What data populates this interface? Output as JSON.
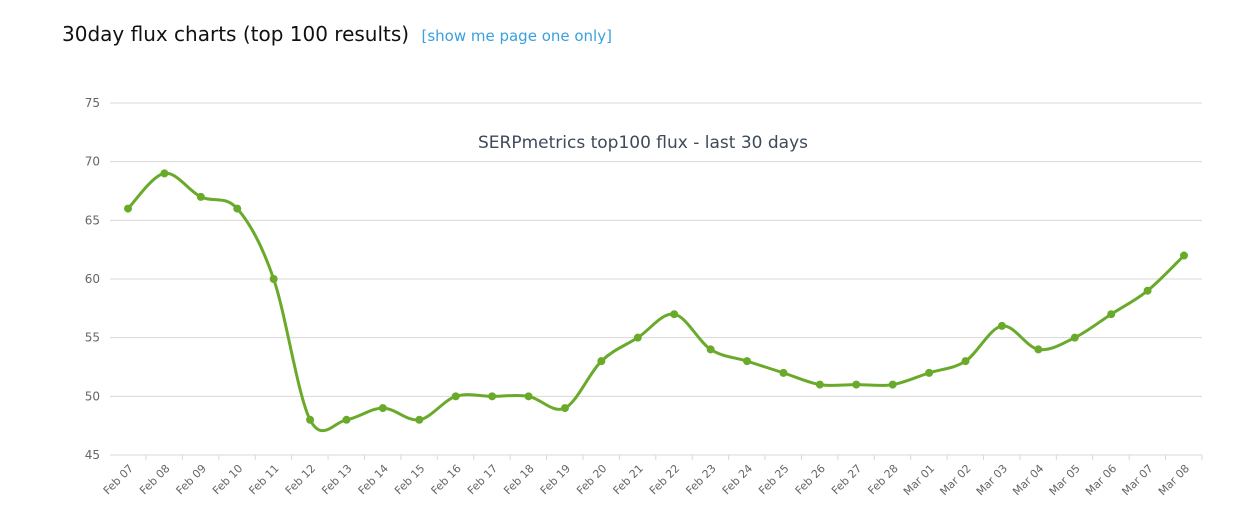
{
  "page": {
    "heading": "30day flux charts (top 100 results)",
    "link_label": "[show me page one only]"
  },
  "colors": {
    "line": "#6aaa2a",
    "grid": "#d8d8d8",
    "title": "#3e4a5a",
    "tick": "#666666",
    "link": "#3aa0dc"
  },
  "chart_data": {
    "type": "line",
    "title": "SERPmetrics top100 flux - last 30 days",
    "xlabel": "",
    "ylabel": "",
    "ylim": [
      45,
      75
    ],
    "yticks": [
      45,
      50,
      55,
      60,
      65,
      70,
      75
    ],
    "grid": true,
    "legend": "none",
    "categories": [
      "Feb 07",
      "Feb 08",
      "Feb 09",
      "Feb 10",
      "Feb 11",
      "Feb 12",
      "Feb 13",
      "Feb 14",
      "Feb 15",
      "Feb 16",
      "Feb 17",
      "Feb 18",
      "Feb 19",
      "Feb 20",
      "Feb 21",
      "Feb 22",
      "Feb 23",
      "Feb 24",
      "Feb 25",
      "Feb 26",
      "Feb 27",
      "Feb 28",
      "Mar 01",
      "Mar 02",
      "Mar 03",
      "Mar 04",
      "Mar 05",
      "Mar 06",
      "Mar 07",
      "Mar 08"
    ],
    "series": [
      {
        "values": [
          66,
          69,
          67,
          66,
          60,
          48,
          48,
          49,
          48,
          50,
          50,
          50,
          49,
          53,
          55,
          57,
          54,
          53,
          52,
          51,
          51,
          51,
          52,
          53,
          56,
          54,
          55,
          57,
          59,
          62
        ]
      }
    ]
  }
}
